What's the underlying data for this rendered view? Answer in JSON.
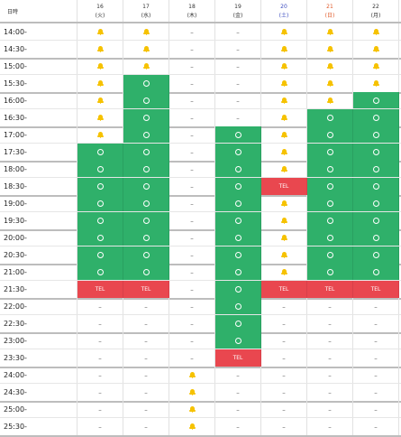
{
  "header": {
    "first_label": "日時",
    "days": [
      {
        "date": "16",
        "weekday": "(火)",
        "type": "weekday"
      },
      {
        "date": "17",
        "weekday": "(水)",
        "type": "weekday"
      },
      {
        "date": "18",
        "weekday": "(木)",
        "type": "weekday"
      },
      {
        "date": "19",
        "weekday": "(金)",
        "type": "weekday"
      },
      {
        "date": "20",
        "weekday": "(土)",
        "type": "sat"
      },
      {
        "date": "21",
        "weekday": "(日)",
        "type": "sun"
      },
      {
        "date": "22",
        "weekday": "(月)",
        "type": "weekday"
      }
    ]
  },
  "legend": {
    "ok_symbol": "○",
    "tel_label": "TEL",
    "dash_symbol": "–",
    "bell_icon": "bell-icon"
  },
  "colors": {
    "ok": "#2fb06a",
    "tel": "#e9474f",
    "bell": "#f6c200",
    "sat": "#3b4cc0",
    "sun": "#e05a2a"
  },
  "rows": [
    {
      "time": "14:00-",
      "cells": [
        "bell",
        "bell",
        "-",
        "-",
        "bell",
        "bell",
        "bell"
      ]
    },
    {
      "time": "14:30-",
      "cells": [
        "bell",
        "bell",
        "-",
        "-",
        "bell",
        "bell",
        "bell"
      ]
    },
    {
      "time": "15:00-",
      "cells": [
        "bell",
        "bell",
        "-",
        "-",
        "bell",
        "bell",
        "bell"
      ]
    },
    {
      "time": "15:30-",
      "cells": [
        "bell",
        "ok",
        "-",
        "-",
        "bell",
        "bell",
        "bell"
      ]
    },
    {
      "time": "16:00-",
      "cells": [
        "bell",
        "ok",
        "-",
        "-",
        "bell",
        "bell",
        "ok"
      ]
    },
    {
      "time": "16:30-",
      "cells": [
        "bell",
        "ok",
        "-",
        "-",
        "bell",
        "ok",
        "ok"
      ]
    },
    {
      "time": "17:00-",
      "cells": [
        "bell",
        "ok",
        "-",
        "ok",
        "bell",
        "ok",
        "ok"
      ]
    },
    {
      "time": "17:30-",
      "cells": [
        "ok",
        "ok",
        "-",
        "ok",
        "bell",
        "ok",
        "ok"
      ]
    },
    {
      "time": "18:00-",
      "cells": [
        "ok",
        "ok",
        "-",
        "ok",
        "bell",
        "ok",
        "ok"
      ]
    },
    {
      "time": "18:30-",
      "cells": [
        "ok",
        "ok",
        "-",
        "ok",
        "tel",
        "ok",
        "ok"
      ]
    },
    {
      "time": "19:00-",
      "cells": [
        "ok",
        "ok",
        "-",
        "ok",
        "bell",
        "ok",
        "ok"
      ]
    },
    {
      "time": "19:30-",
      "cells": [
        "ok",
        "ok",
        "-",
        "ok",
        "bell",
        "ok",
        "ok"
      ]
    },
    {
      "time": "20:00-",
      "cells": [
        "ok",
        "ok",
        "-",
        "ok",
        "bell",
        "ok",
        "ok"
      ]
    },
    {
      "time": "20:30-",
      "cells": [
        "ok",
        "ok",
        "-",
        "ok",
        "bell",
        "ok",
        "ok"
      ]
    },
    {
      "time": "21:00-",
      "cells": [
        "ok",
        "ok",
        "-",
        "ok",
        "bell",
        "ok",
        "ok"
      ]
    },
    {
      "time": "21:30-",
      "cells": [
        "tel",
        "tel",
        "-",
        "ok",
        "tel",
        "tel",
        "tel"
      ]
    },
    {
      "time": "22:00-",
      "cells": [
        "-",
        "-",
        "-",
        "ok",
        "-",
        "-",
        "-"
      ]
    },
    {
      "time": "22:30-",
      "cells": [
        "-",
        "-",
        "-",
        "ok",
        "-",
        "-",
        "-"
      ]
    },
    {
      "time": "23:00-",
      "cells": [
        "-",
        "-",
        "-",
        "ok",
        "-",
        "-",
        "-"
      ]
    },
    {
      "time": "23:30-",
      "cells": [
        "-",
        "-",
        "-",
        "tel",
        "-",
        "-",
        "-"
      ]
    },
    {
      "time": "24:00-",
      "cells": [
        "-",
        "-",
        "bell",
        "-",
        "-",
        "-",
        "-"
      ]
    },
    {
      "time": "24:30-",
      "cells": [
        "-",
        "-",
        "bell",
        "-",
        "-",
        "-",
        "-"
      ]
    },
    {
      "time": "25:00-",
      "cells": [
        "-",
        "-",
        "bell",
        "-",
        "-",
        "-",
        "-"
      ]
    },
    {
      "time": "25:30-",
      "cells": [
        "-",
        "-",
        "bell",
        "-",
        "-",
        "-",
        "-"
      ]
    }
  ]
}
